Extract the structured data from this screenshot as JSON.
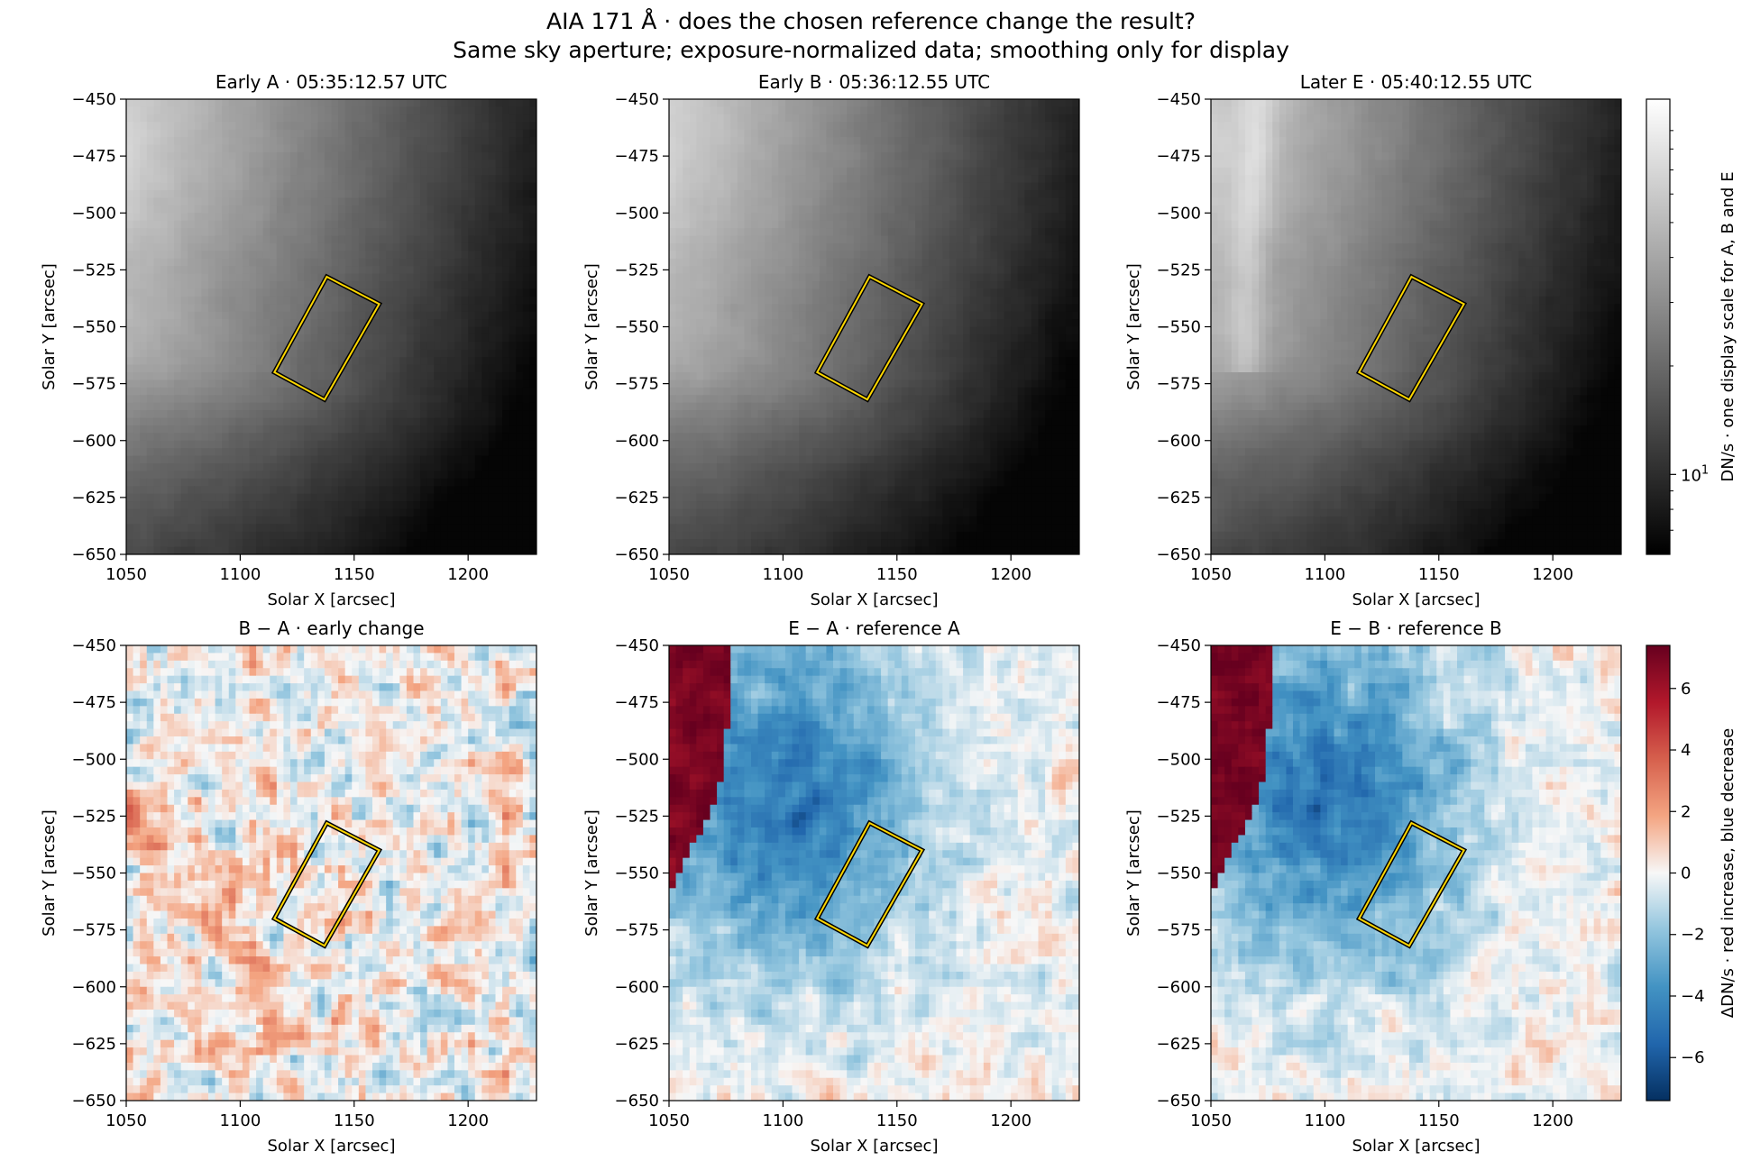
{
  "figure": {
    "title_line1": "AIA 171 Å · does the chosen reference change the result?",
    "title_line2": "Same sky aperture; exposure-normalized data; smoothing only for display"
  },
  "colors": {
    "aperture_outer": "#000000",
    "aperture_inner": "#ffd700",
    "diff_positive": "#67001f",
    "diff_zero": "#f7f7f7",
    "diff_negative": "#053061"
  },
  "chart_data": [
    {
      "type": "heatmap",
      "id": "A",
      "row": 0,
      "col": 0,
      "kind": "intensity",
      "title": "Early A · 05:35:12.57 UTC",
      "xlabel": "Solar X [arcsec]",
      "ylabel": "Solar Y [arcsec]",
      "xlim": [
        1050,
        1230
      ],
      "ylim": [
        -650,
        -450
      ],
      "xticks": [
        1050,
        1100,
        1150,
        1200
      ],
      "yticks": [
        -450,
        -475,
        -500,
        -525,
        -550,
        -575,
        -600,
        -625,
        -650
      ],
      "aperture": [
        [
          1138,
          -528
        ],
        [
          1161,
          -540
        ],
        [
          1137,
          -582
        ],
        [
          1115,
          -570
        ]
      ]
    },
    {
      "type": "heatmap",
      "id": "B",
      "row": 0,
      "col": 1,
      "kind": "intensity",
      "title": "Early B · 05:36:12.55 UTC",
      "xlabel": "Solar X [arcsec]",
      "ylabel": "Solar Y [arcsec]",
      "xlim": [
        1050,
        1230
      ],
      "ylim": [
        -650,
        -450
      ],
      "xticks": [
        1050,
        1100,
        1150,
        1200
      ],
      "yticks": [
        -450,
        -475,
        -500,
        -525,
        -550,
        -575,
        -600,
        -625,
        -650
      ],
      "aperture": [
        [
          1138,
          -528
        ],
        [
          1161,
          -540
        ],
        [
          1137,
          -582
        ],
        [
          1115,
          -570
        ]
      ]
    },
    {
      "type": "heatmap",
      "id": "E",
      "row": 0,
      "col": 2,
      "kind": "intensity",
      "title": "Later E · 05:40:12.55 UTC",
      "xlabel": "Solar X [arcsec]",
      "ylabel": "Solar Y [arcsec]",
      "xlim": [
        1050,
        1230
      ],
      "ylim": [
        -650,
        -450
      ],
      "xticks": [
        1050,
        1100,
        1150,
        1200
      ],
      "yticks": [
        -450,
        -475,
        -500,
        -525,
        -550,
        -575,
        -600,
        -625,
        -650
      ],
      "aperture": [
        [
          1138,
          -528
        ],
        [
          1161,
          -540
        ],
        [
          1137,
          -582
        ],
        [
          1115,
          -570
        ]
      ]
    },
    {
      "type": "heatmap",
      "id": "BA",
      "row": 1,
      "col": 0,
      "kind": "difference",
      "title": "B − A · early change",
      "xlabel": "Solar X [arcsec]",
      "ylabel": "Solar Y [arcsec]",
      "xlim": [
        1050,
        1230
      ],
      "ylim": [
        -650,
        -450
      ],
      "xticks": [
        1050,
        1100,
        1150,
        1200
      ],
      "yticks": [
        -450,
        -475,
        -500,
        -525,
        -550,
        -575,
        -600,
        -625,
        -650
      ],
      "aperture": [
        [
          1138,
          -528
        ],
        [
          1161,
          -540
        ],
        [
          1137,
          -582
        ],
        [
          1115,
          -570
        ]
      ]
    },
    {
      "type": "heatmap",
      "id": "EA",
      "row": 1,
      "col": 1,
      "kind": "difference",
      "title": "E − A · reference A",
      "xlabel": "Solar X [arcsec]",
      "ylabel": "Solar Y [arcsec]",
      "xlim": [
        1050,
        1230
      ],
      "ylim": [
        -650,
        -450
      ],
      "xticks": [
        1050,
        1100,
        1150,
        1200
      ],
      "yticks": [
        -450,
        -475,
        -500,
        -525,
        -550,
        -575,
        -600,
        -625,
        -650
      ],
      "aperture": [
        [
          1138,
          -528
        ],
        [
          1161,
          -540
        ],
        [
          1137,
          -582
        ],
        [
          1115,
          -570
        ]
      ]
    },
    {
      "type": "heatmap",
      "id": "EB",
      "row": 1,
      "col": 2,
      "kind": "difference",
      "title": "E − B · reference B",
      "xlabel": "Solar X [arcsec]",
      "ylabel": "Solar Y [arcsec]",
      "xlim": [
        1050,
        1230
      ],
      "ylim": [
        -650,
        -450
      ],
      "xticks": [
        1050,
        1100,
        1150,
        1200
      ],
      "yticks": [
        -450,
        -475,
        -500,
        -525,
        -550,
        -575,
        -600,
        -625,
        -650
      ],
      "aperture": [
        [
          1138,
          -528
        ],
        [
          1161,
          -540
        ],
        [
          1137,
          -582
        ],
        [
          1115,
          -570
        ]
      ]
    }
  ],
  "colorbars": {
    "intensity": {
      "label": "DN/s · one display scale for A, B and E",
      "scale": "log",
      "colormap": "gray",
      "tick_value": 10,
      "tick_label_base": "10",
      "tick_label_exp": "1",
      "range": [
        6,
        110
      ]
    },
    "difference": {
      "label": "ΔDN/s · red increase, blue decrease",
      "scale": "linear",
      "colormap": "RdBu_r",
      "range": [
        -7.4,
        7.4
      ],
      "ticks": [
        -6,
        -4,
        -2,
        0,
        2,
        4,
        6
      ],
      "tick_labels": [
        "−6",
        "−4",
        "−2",
        "0",
        "2",
        "4",
        "6"
      ]
    }
  }
}
